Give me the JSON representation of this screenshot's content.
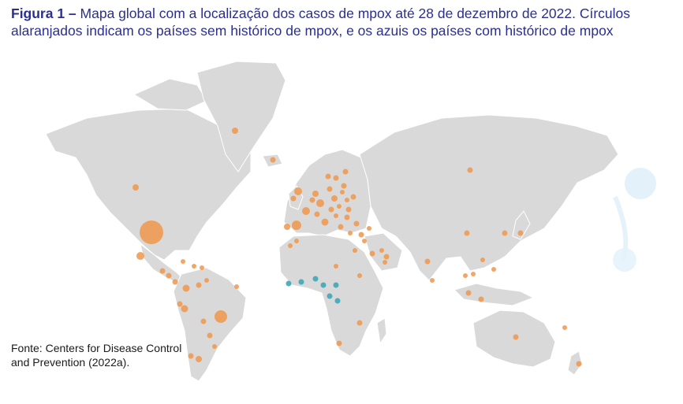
{
  "figure": {
    "caption_lead": "Figura 1 –",
    "caption_text": "Mapa global com a localização dos casos de mpox até 28 de dezembro de 2022. Círculos alaranjados indicam os países sem histórico de mpox, e os azuis os países com histórico de mpox"
  },
  "legend_colors": {
    "no_history": "#f0964b",
    "with_history": "#3fa6b6",
    "land": "#d9d9d9",
    "borders": "#ffffff"
  },
  "source": {
    "text": "Fonte: Centers for Disease Control and Prevention (2022a)."
  }
}
